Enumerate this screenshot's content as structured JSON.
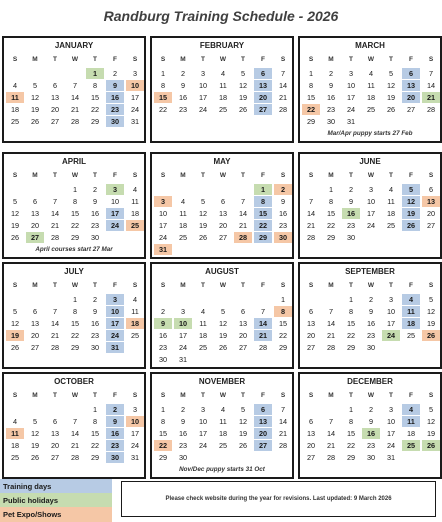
{
  "title": "Randburg Training Schedule - 2026",
  "weekday_headers": [
    "S",
    "M",
    "T",
    "W",
    "T",
    "F",
    "S"
  ],
  "months": [
    {
      "name": "JANUARY",
      "start": 4,
      "days": 31,
      "blue": [
        9,
        16,
        23,
        30
      ],
      "green": [
        1
      ],
      "orange": [
        10,
        11
      ],
      "note": ""
    },
    {
      "name": "FEBRUARY",
      "start": 0,
      "days": 28,
      "blue": [
        6,
        13,
        20,
        27
      ],
      "green": [],
      "orange": [
        15
      ],
      "note": ""
    },
    {
      "name": "MARCH",
      "start": 0,
      "days": 31,
      "blue": [
        6,
        13,
        20
      ],
      "green": [
        21
      ],
      "orange": [
        22
      ],
      "note": "Mar/Apr puppy starts 27 Feb"
    },
    {
      "name": "APRIL",
      "start": 3,
      "days": 30,
      "blue": [
        17,
        24
      ],
      "green": [
        3,
        27
      ],
      "orange": [
        25
      ],
      "note": "April courses start 27 Mar"
    },
    {
      "name": "MAY",
      "start": 5,
      "days": 31,
      "blue": [
        8,
        15,
        22,
        29
      ],
      "green": [
        1
      ],
      "orange": [
        2,
        3,
        28,
        30,
        31
      ],
      "note": ""
    },
    {
      "name": "JUNE",
      "start": 1,
      "days": 30,
      "blue": [
        5,
        12,
        19,
        26
      ],
      "green": [
        16
      ],
      "orange": [
        13
      ],
      "note": ""
    },
    {
      "name": "JULY",
      "start": 3,
      "days": 31,
      "blue": [
        3,
        10,
        17,
        24,
        31
      ],
      "green": [],
      "orange": [
        18,
        19
      ],
      "note": ""
    },
    {
      "name": "AUGUST",
      "start": 6,
      "days": 31,
      "blue": [
        14,
        21
      ],
      "green": [
        9,
        10
      ],
      "orange": [
        8
      ],
      "note": ""
    },
    {
      "name": "SEPTEMBER",
      "start": 2,
      "days": 30,
      "blue": [
        4,
        11,
        18
      ],
      "green": [
        24
      ],
      "orange": [
        26
      ],
      "note": ""
    },
    {
      "name": "OCTOBER",
      "start": 4,
      "days": 31,
      "blue": [
        2,
        9,
        16,
        23,
        30
      ],
      "green": [],
      "orange": [
        10,
        11
      ],
      "note": ""
    },
    {
      "name": "NOVEMBER",
      "start": 0,
      "days": 30,
      "blue": [
        6,
        13,
        20,
        27
      ],
      "green": [],
      "orange": [
        22
      ],
      "note": "Nov/Dec puppy starts 31 Oct"
    },
    {
      "name": "DECEMBER",
      "start": 2,
      "days": 31,
      "blue": [
        4,
        11
      ],
      "green": [
        16,
        25,
        26
      ],
      "orange": [],
      "note": ""
    }
  ],
  "legend": [
    {
      "label": "Training days",
      "color": "#b7cbe4"
    },
    {
      "label": "Public holidays",
      "color": "#c6dcb0"
    },
    {
      "label": "Pet Expo/Shows",
      "color": "#f5c7a6"
    }
  ],
  "footer_note": "Please check website during the year for revisions.  Last updated: 9 March 2026"
}
